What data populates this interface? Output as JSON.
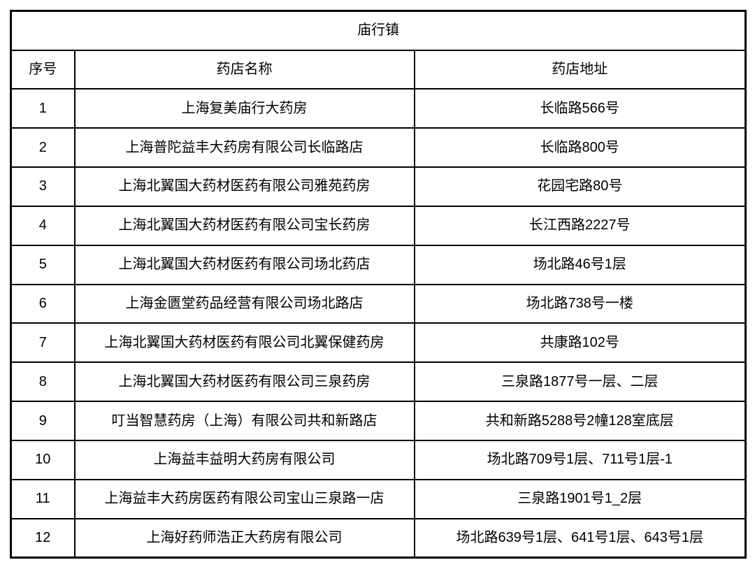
{
  "table": {
    "title": "庙行镇",
    "columns": {
      "no": "序号",
      "name": "药店名称",
      "address": "药店地址"
    },
    "rows": [
      {
        "no": "1",
        "name": "上海复美庙行大药房",
        "address": "长临路566号"
      },
      {
        "no": "2",
        "name": "上海普陀益丰大药房有限公司长临路店",
        "address": "长临路800号"
      },
      {
        "no": "3",
        "name": "上海北翼国大药材医药有限公司雅苑药房",
        "address": "花园宅路80号"
      },
      {
        "no": "4",
        "name": "上海北翼国大药材医药有限公司宝长药房",
        "address": "长江西路2227号"
      },
      {
        "no": "5",
        "name": "上海北翼国大药材医药有限公司场北药店",
        "address": "场北路46号1层"
      },
      {
        "no": "6",
        "name": "上海金匮堂药品经营有限公司场北路店",
        "address": "场北路738号一楼"
      },
      {
        "no": "7",
        "name": "上海北翼国大药材医药有限公司北翼保健药房",
        "address": "共康路102号"
      },
      {
        "no": "8",
        "name": "上海北翼国大药材医药有限公司三泉药房",
        "address": "三泉路1877号一层、二层"
      },
      {
        "no": "9",
        "name": "叮当智慧药房（上海）有限公司共和新路店",
        "address": "共和新路5288号2幢128室底层"
      },
      {
        "no": "10",
        "name": "上海益丰益明大药房有限公司",
        "address": "场北路709号1层、711号1层-1"
      },
      {
        "no": "11",
        "name": "上海益丰大药房医药有限公司宝山三泉路一店",
        "address": "三泉路1901号1_2层"
      },
      {
        "no": "12",
        "name": "上海好药师浩正大药房有限公司",
        "address": "场北路639号1层、641号1层、643号1层"
      }
    ]
  },
  "colors": {
    "border": "#000000",
    "text": "#000000",
    "background": "#ffffff"
  }
}
